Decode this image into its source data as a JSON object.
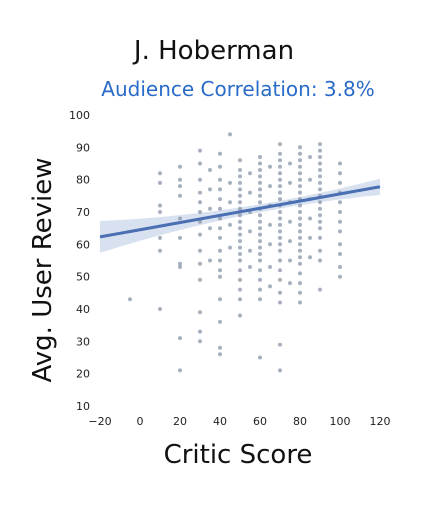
{
  "chart_data": {
    "type": "scatter",
    "title": "J. Hoberman",
    "subtitle": "Audience Correlation: 3.8%",
    "xlabel": "Critic Score",
    "ylabel": "Avg. User Review",
    "xlim": [
      -20,
      120
    ],
    "ylim": [
      10,
      100
    ],
    "xticks": [
      "−20",
      "0",
      "20",
      "40",
      "60",
      "80",
      "100",
      "120"
    ],
    "yticks": [
      "10",
      "20",
      "30",
      "40",
      "50",
      "60",
      "70",
      "80",
      "90",
      "100"
    ],
    "regression": {
      "x": [
        -20,
        120
      ],
      "y": [
        62.3,
        77.8
      ]
    },
    "points": [
      [
        -5,
        43
      ],
      [
        10,
        40
      ],
      [
        10,
        82
      ],
      [
        10,
        79
      ],
      [
        10,
        72
      ],
      [
        10,
        70
      ],
      [
        10,
        62
      ],
      [
        10,
        58
      ],
      [
        20,
        84
      ],
      [
        20,
        80
      ],
      [
        20,
        78
      ],
      [
        20,
        75
      ],
      [
        20,
        68
      ],
      [
        20,
        62
      ],
      [
        20,
        54
      ],
      [
        20,
        53
      ],
      [
        20,
        31
      ],
      [
        20,
        21
      ],
      [
        30,
        89
      ],
      [
        30,
        85
      ],
      [
        30,
        80
      ],
      [
        30,
        76
      ],
      [
        30,
        73
      ],
      [
        30,
        70
      ],
      [
        30,
        67
      ],
      [
        30,
        63
      ],
      [
        30,
        58
      ],
      [
        30,
        54
      ],
      [
        30,
        49
      ],
      [
        30,
        39
      ],
      [
        30,
        33
      ],
      [
        30,
        30
      ],
      [
        35,
        83
      ],
      [
        35,
        77
      ],
      [
        35,
        71
      ],
      [
        35,
        65
      ],
      [
        35,
        55
      ],
      [
        40,
        88
      ],
      [
        40,
        84
      ],
      [
        40,
        80
      ],
      [
        40,
        77
      ],
      [
        40,
        74
      ],
      [
        40,
        71
      ],
      [
        40,
        68
      ],
      [
        40,
        65
      ],
      [
        40,
        62
      ],
      [
        40,
        58
      ],
      [
        40,
        55
      ],
      [
        40,
        52
      ],
      [
        40,
        50
      ],
      [
        40,
        43
      ],
      [
        40,
        36
      ],
      [
        40,
        28
      ],
      [
        40,
        26
      ],
      [
        45,
        94
      ],
      [
        45,
        79
      ],
      [
        45,
        73
      ],
      [
        45,
        66
      ],
      [
        45,
        59
      ],
      [
        50,
        86
      ],
      [
        50,
        83
      ],
      [
        50,
        81
      ],
      [
        50,
        79
      ],
      [
        50,
        77
      ],
      [
        50,
        75
      ],
      [
        50,
        73
      ],
      [
        50,
        71
      ],
      [
        50,
        69
      ],
      [
        50,
        67
      ],
      [
        50,
        65
      ],
      [
        50,
        63
      ],
      [
        50,
        61
      ],
      [
        50,
        59
      ],
      [
        50,
        57
      ],
      [
        50,
        55
      ],
      [
        50,
        52
      ],
      [
        50,
        49
      ],
      [
        50,
        46
      ],
      [
        50,
        43
      ],
      [
        50,
        38
      ],
      [
        55,
        82
      ],
      [
        55,
        76
      ],
      [
        55,
        70
      ],
      [
        55,
        64
      ],
      [
        55,
        58
      ],
      [
        55,
        53
      ],
      [
        60,
        87
      ],
      [
        60,
        85
      ],
      [
        60,
        83
      ],
      [
        60,
        81
      ],
      [
        60,
        79
      ],
      [
        60,
        77
      ],
      [
        60,
        75
      ],
      [
        60,
        73
      ],
      [
        60,
        71
      ],
      [
        60,
        69
      ],
      [
        60,
        67
      ],
      [
        60,
        65
      ],
      [
        60,
        63
      ],
      [
        60,
        61
      ],
      [
        60,
        59
      ],
      [
        60,
        57
      ],
      [
        60,
        55
      ],
      [
        60,
        52
      ],
      [
        60,
        49
      ],
      [
        60,
        46
      ],
      [
        60,
        43
      ],
      [
        60,
        25
      ],
      [
        65,
        84
      ],
      [
        65,
        78
      ],
      [
        65,
        72
      ],
      [
        65,
        66
      ],
      [
        65,
        60
      ],
      [
        65,
        53
      ],
      [
        65,
        47
      ],
      [
        70,
        91
      ],
      [
        70,
        88
      ],
      [
        70,
        86
      ],
      [
        70,
        84
      ],
      [
        70,
        82
      ],
      [
        70,
        80
      ],
      [
        70,
        78
      ],
      [
        70,
        76
      ],
      [
        70,
        74
      ],
      [
        70,
        72
      ],
      [
        70,
        70
      ],
      [
        70,
        68
      ],
      [
        70,
        66
      ],
      [
        70,
        64
      ],
      [
        70,
        62
      ],
      [
        70,
        60
      ],
      [
        70,
        58
      ],
      [
        70,
        55
      ],
      [
        70,
        52
      ],
      [
        70,
        49
      ],
      [
        70,
        45
      ],
      [
        70,
        42
      ],
      [
        70,
        29
      ],
      [
        70,
        21
      ],
      [
        75,
        85
      ],
      [
        75,
        79
      ],
      [
        75,
        73
      ],
      [
        75,
        67
      ],
      [
        75,
        61
      ],
      [
        75,
        55
      ],
      [
        75,
        48
      ],
      [
        80,
        90
      ],
      [
        80,
        88
      ],
      [
        80,
        86
      ],
      [
        80,
        84
      ],
      [
        80,
        82
      ],
      [
        80,
        80
      ],
      [
        80,
        78
      ],
      [
        80,
        76
      ],
      [
        80,
        74
      ],
      [
        80,
        72
      ],
      [
        80,
        70
      ],
      [
        80,
        68
      ],
      [
        80,
        66
      ],
      [
        80,
        64
      ],
      [
        80,
        62
      ],
      [
        80,
        60
      ],
      [
        80,
        58
      ],
      [
        80,
        56
      ],
      [
        80,
        54
      ],
      [
        80,
        51
      ],
      [
        80,
        48
      ],
      [
        80,
        45
      ],
      [
        80,
        42
      ],
      [
        85,
        87
      ],
      [
        85,
        80
      ],
      [
        85,
        74
      ],
      [
        85,
        68
      ],
      [
        85,
        62
      ],
      [
        85,
        56
      ],
      [
        90,
        91
      ],
      [
        90,
        89
      ],
      [
        90,
        87
      ],
      [
        90,
        85
      ],
      [
        90,
        83
      ],
      [
        90,
        81
      ],
      [
        90,
        79
      ],
      [
        90,
        77
      ],
      [
        90,
        75
      ],
      [
        90,
        73
      ],
      [
        90,
        71
      ],
      [
        90,
        69
      ],
      [
        90,
        67
      ],
      [
        90,
        65
      ],
      [
        90,
        62
      ],
      [
        90,
        58
      ],
      [
        90,
        55
      ],
      [
        90,
        46
      ],
      [
        100,
        85
      ],
      [
        100,
        82
      ],
      [
        100,
        79
      ],
      [
        100,
        76
      ],
      [
        100,
        73
      ],
      [
        100,
        70
      ],
      [
        100,
        67
      ],
      [
        100,
        64
      ],
      [
        100,
        60
      ],
      [
        100,
        57
      ],
      [
        100,
        53
      ],
      [
        100,
        50
      ]
    ],
    "colors": {
      "points": "#8a96a8",
      "line": "#4a6fb3",
      "band": "#c8d4ea",
      "subtitle": "#2a6bc8"
    }
  }
}
